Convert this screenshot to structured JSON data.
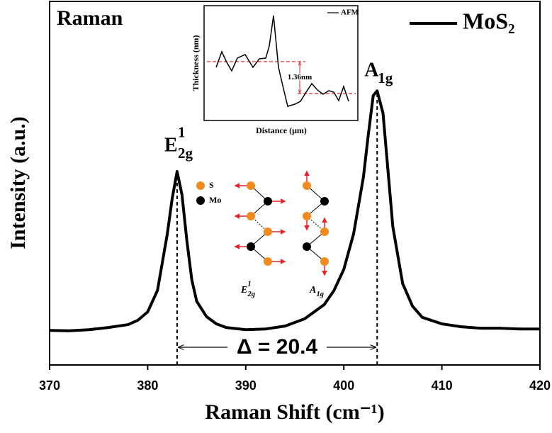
{
  "chart_data": [
    {
      "type": "line",
      "label": "Raman",
      "xlabel": "Raman Shift (cm⁻¹)",
      "ylabel": "Intensity (a.u.)",
      "x": [
        370,
        372,
        374,
        376,
        378,
        379,
        380,
        381,
        382,
        382.5,
        383,
        383.5,
        384,
        384.5,
        385,
        386,
        387,
        388,
        390,
        392,
        394,
        396,
        398,
        399,
        400,
        401,
        402,
        402.5,
        403,
        403.4,
        404,
        404.5,
        405,
        406,
        407,
        408,
        410,
        412,
        414,
        416,
        418,
        420
      ],
      "series": [
        {
          "name": "MoS₂",
          "color": "#000000",
          "values": [
            9.5,
            9.4,
            9.7,
            10.3,
            11.1,
            12.3,
            14.6,
            20.5,
            36,
            45.8,
            53.2,
            46.8,
            34.1,
            23.4,
            17.5,
            13.3,
            11.3,
            10.3,
            9.7,
            9.9,
            10.7,
            12.7,
            16.6,
            20.5,
            26.3,
            36.1,
            51.7,
            63.4,
            74.1,
            75.4,
            69.2,
            53.6,
            38,
            22.4,
            16.2,
            13.1,
            11.3,
            10.5,
            10.1,
            10.1,
            9.9,
            9.9
          ]
        }
      ],
      "xlim": [
        370,
        420
      ],
      "xticks": [
        370,
        380,
        390,
        400,
        410,
        420
      ],
      "ylim": [
        0,
        100
      ],
      "markers": [
        383.0,
        403.4
      ],
      "delta_label": "Δ = 20.4",
      "peak_labels": [
        {
          "text": "E",
          "sup": "1",
          "sub": "2g"
        },
        {
          "text": "A",
          "sub": "1g"
        }
      ],
      "diagram": {
        "atoms": [
          "S",
          "Mo"
        ],
        "modes": [
          {
            "text": "E",
            "sup": "1",
            "sub": "2g"
          },
          {
            "text": "A",
            "sub": "1g"
          }
        ]
      }
    },
    {
      "type": "line",
      "legend": "AFM",
      "xlabel": "Distance (μm)",
      "ylabel": "Thickness (nm)",
      "x": [
        17,
        25,
        32,
        39,
        47,
        58,
        69,
        78,
        87,
        92,
        98,
        105,
        112,
        118,
        128,
        136,
        144,
        152,
        160,
        168,
        176,
        183,
        190,
        197,
        204
      ],
      "values": [
        75,
        97,
        82,
        70,
        88,
        93,
        75,
        87,
        88,
        105,
        148,
        75,
        45,
        20,
        23,
        27,
        40,
        52,
        43,
        37,
        42,
        40,
        28,
        48,
        27
      ],
      "xlim": [
        0,
        217
      ],
      "ylim": [
        0,
        162
      ],
      "hlines": [
        83,
        38
      ],
      "hline_color": "#e8202a",
      "hline_label": "1.36nm"
    }
  ]
}
